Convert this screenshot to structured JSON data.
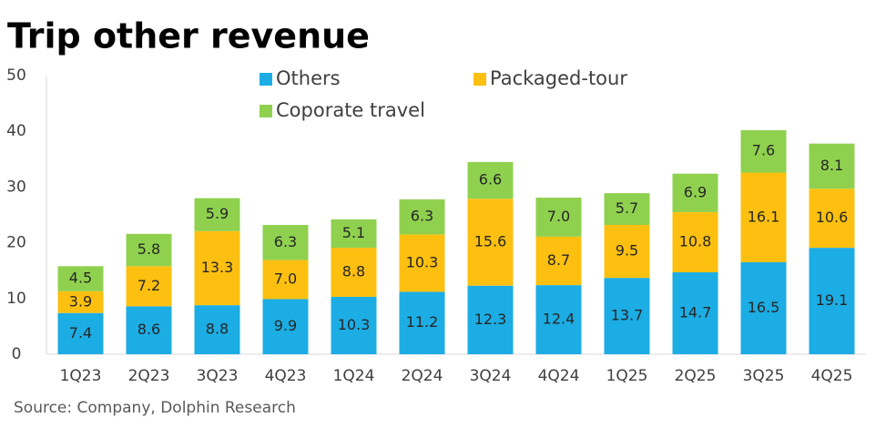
{
  "chart_data": {
    "type": "stacked_bar",
    "title": "Trip other revenue",
    "source": "Source: Company, Dolphin Research",
    "categories": [
      "1Q23",
      "2Q23",
      "3Q23",
      "4Q23",
      "1Q24",
      "2Q24",
      "3Q24",
      "4Q24",
      "1Q25",
      "2Q25",
      "3Q25",
      "4Q25"
    ],
    "series": [
      {
        "name": "Others",
        "color": "#1cade4",
        "values": [
          7.4,
          8.6,
          8.8,
          9.9,
          10.3,
          11.2,
          12.3,
          12.4,
          13.7,
          14.7,
          16.5,
          19.1
        ],
        "value_labels": [
          "7.4",
          "8.6",
          "8.8",
          "9.9",
          "10.3",
          "11.2",
          "12.3",
          "12.4",
          "13.7",
          "14.7",
          "16.5",
          "19.1"
        ]
      },
      {
        "name": "Packaged-tour",
        "color": "#fdc010",
        "values": [
          3.9,
          7.2,
          13.3,
          7.0,
          8.8,
          10.3,
          15.6,
          8.7,
          9.5,
          10.8,
          16.1,
          10.6
        ],
        "value_labels": [
          "3.9",
          "7.2",
          "13.3",
          "7.0",
          "8.8",
          "10.3",
          "15.6",
          "8.7",
          "9.5",
          "10.8",
          "16.1",
          "10.6"
        ]
      },
      {
        "name": "Coporate travel",
        "color": "#8fd14f",
        "values": [
          4.5,
          5.8,
          5.9,
          6.3,
          5.1,
          6.3,
          6.6,
          7.0,
          5.7,
          6.9,
          7.6,
          8.1
        ],
        "value_labels": [
          "4.5",
          "5.8",
          "5.9",
          "6.3",
          "5.1",
          "6.3",
          "6.6",
          "7.0",
          "5.7",
          "6.9",
          "7.6",
          "8.1"
        ]
      }
    ],
    "ylim": [
      0,
      50
    ],
    "yticks": [
      0,
      10,
      20,
      30,
      40,
      50
    ],
    "grid": false
  }
}
